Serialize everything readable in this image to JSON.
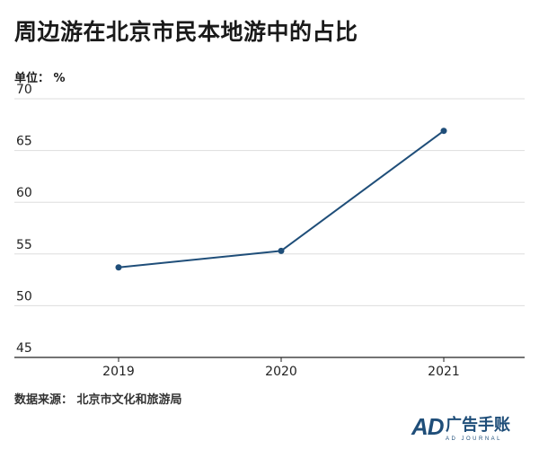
{
  "title": "周边游在北京市民本地游中的占比",
  "unit_label": "单位：  %",
  "source": "数据来源：  北京市文化和旅游局",
  "logo": {
    "mark": "AD",
    "name": "广告手账",
    "subtitle": "AD JOURNAL"
  },
  "colors": {
    "line": "#1f4e79",
    "grid": "#dddddd",
    "axis": "#222222",
    "brand": "#1f4e79"
  },
  "chart_data": {
    "type": "line",
    "title": "周边游在北京市民本地游中的占比",
    "ylabel": "单位： %",
    "xlabel": "",
    "categories": [
      "2019",
      "2020",
      "2021"
    ],
    "series": [
      {
        "values": [
          53.7,
          55.3,
          66.9
        ]
      }
    ],
    "ylim": [
      45,
      70
    ],
    "yticks": [
      45,
      50,
      55,
      60,
      65,
      70
    ],
    "grid": "horizontal",
    "legend": "none"
  }
}
